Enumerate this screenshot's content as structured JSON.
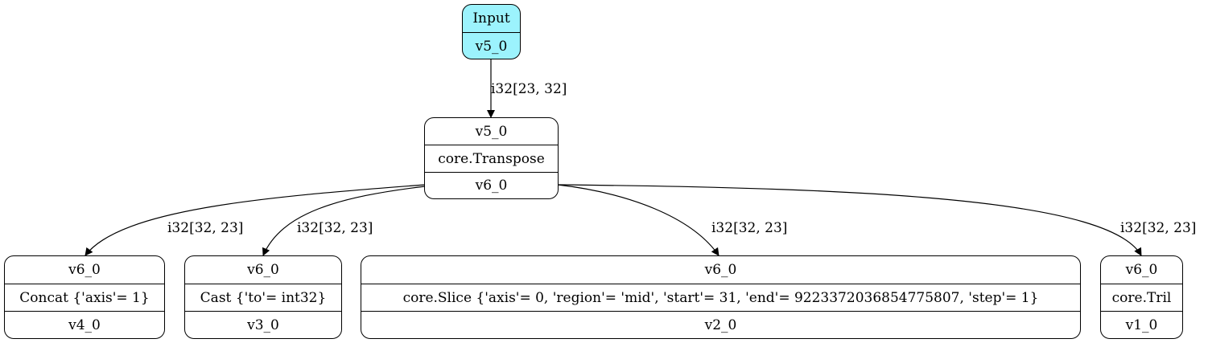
{
  "nodes": {
    "input": {
      "title": "Input",
      "name": "v5_0"
    },
    "transpose": {
      "in": "v5_0",
      "op": "core.Transpose",
      "out": "v6_0"
    },
    "concat": {
      "in": "v6_0",
      "op": "Concat {'axis'= 1}",
      "out": "v4_0"
    },
    "cast": {
      "in": "v6_0",
      "op": "Cast {'to'= int32}",
      "out": "v3_0"
    },
    "slice": {
      "in": "v6_0",
      "op": "core.Slice {'axis'= 0, 'region'= 'mid', 'start'= 31, 'end'= 9223372036854775807, 'step'= 1}",
      "out": "v2_0"
    },
    "tril": {
      "in": "v6_0",
      "op": "core.Tril",
      "out": "v1_0"
    }
  },
  "edges": {
    "input_to_transpose": "i32[23, 32]",
    "transpose_to_concat": "i32[32, 23]",
    "transpose_to_cast": "i32[32, 23]",
    "transpose_to_slice": "i32[32, 23]",
    "transpose_to_tril": "i32[32, 23]"
  }
}
